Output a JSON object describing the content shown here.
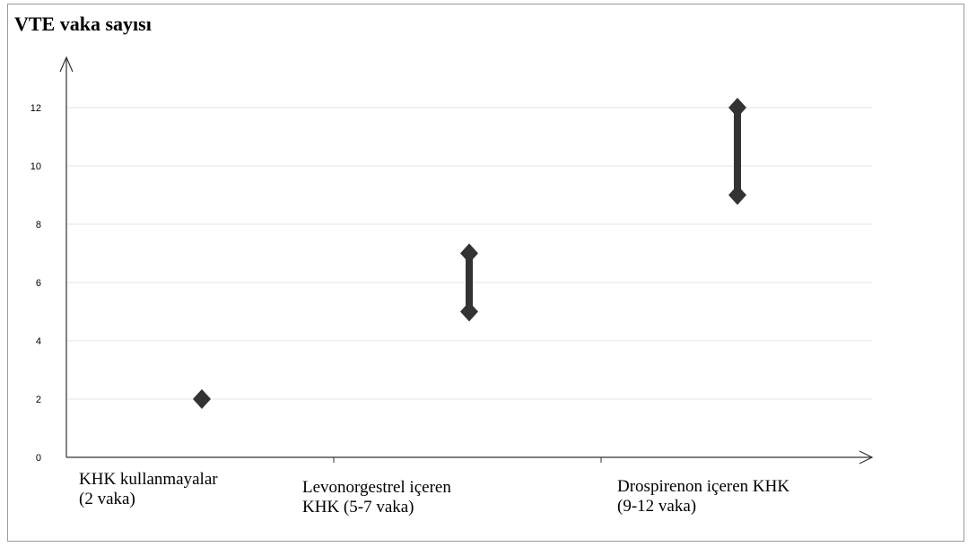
{
  "chart_data": {
    "type": "scatter",
    "title": "VTE vaka sayısı",
    "xlabel": "",
    "ylabel": "",
    "ylim": [
      0,
      14
    ],
    "yticks": [
      0,
      2,
      4,
      6,
      8,
      10,
      12
    ],
    "grid": true,
    "categories": [
      {
        "line1": "KHK kullanmayalar",
        "line2": "(2 vaka)"
      },
      {
        "line1": "Levonorgestrel içeren",
        "line2": "KHK (5-7 vaka)"
      },
      {
        "line1": "Drospirenon içeren KHK",
        "line2": "(9-12 vaka)"
      }
    ],
    "ranges": [
      {
        "low": 2,
        "high": 2
      },
      {
        "low": 5,
        "high": 7
      },
      {
        "low": 9,
        "high": 12
      }
    ],
    "colors": {
      "marker": "#333333",
      "grid": "#e6e6e6",
      "axis": "#333333"
    }
  }
}
